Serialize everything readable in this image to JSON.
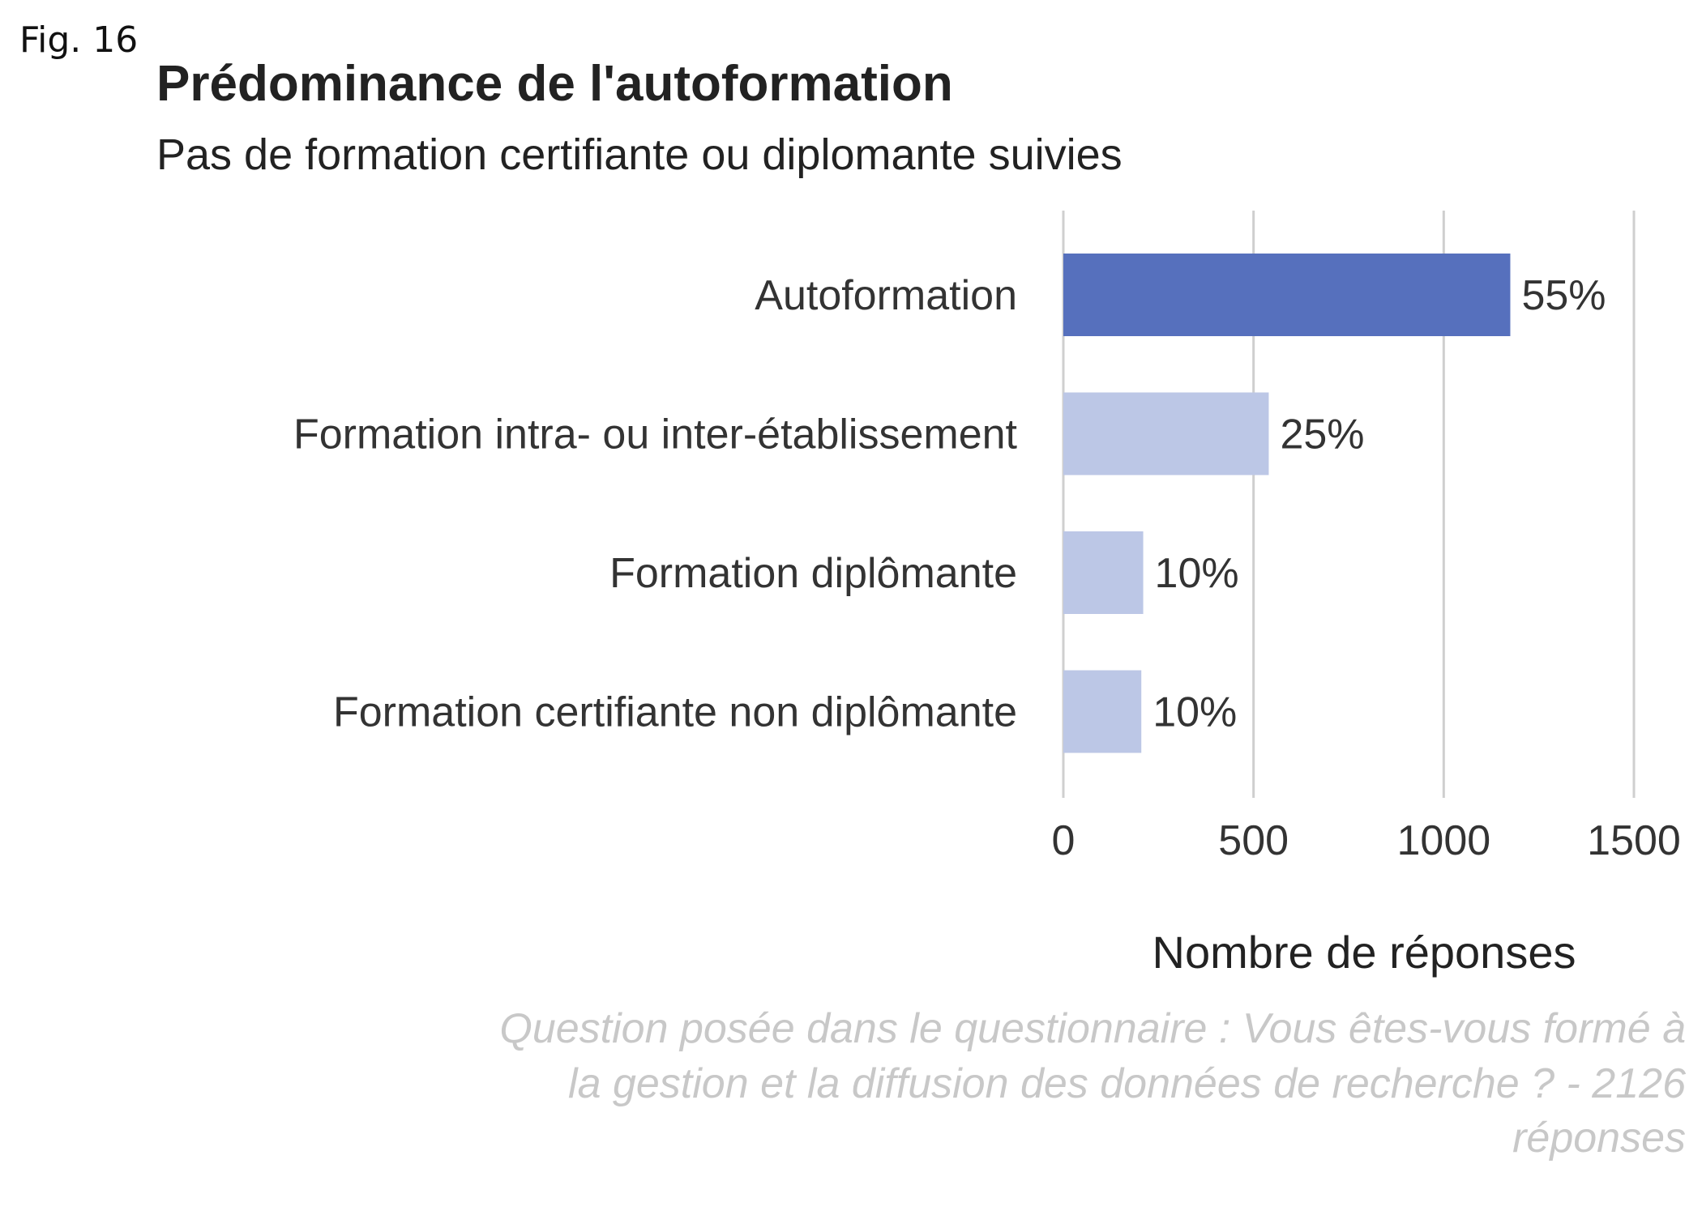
{
  "figure_label": "Fig. 16",
  "chart_data": {
    "type": "bar",
    "orientation": "horizontal",
    "title": "Prédominance de l'autoformation",
    "subtitle": "Pas de formation certifiante ou diplomante suivies",
    "categories": [
      "Autoformation",
      "Formation intra- ou inter-établissement",
      "Formation diplômante",
      "Formation certifiante non diplômante"
    ],
    "values": [
      1175,
      540,
      210,
      205
    ],
    "data_labels": [
      "55%",
      "25%",
      "10%",
      "10%"
    ],
    "highlight_index": 0,
    "xlabel": "Nombre de réponses",
    "ylabel": "",
    "xlim": [
      0,
      1500
    ],
    "x_ticks": [
      0,
      500,
      1000,
      1500
    ],
    "x_tick_labels": [
      "0",
      "500",
      "1000",
      "1500"
    ],
    "grid": "vertical",
    "legend": "none",
    "caption_lines": [
      "Question posée dans le questionnaire : Vous êtes-vous formé à",
      "la gestion et la diffusion des données de recherche ? - 2126",
      "réponses"
    ]
  },
  "colors": {
    "highlight_bar": "#5670bd",
    "other_bar": "#bcc7e6",
    "grid": "#cfcfcf",
    "caption": "#c8c8c8"
  }
}
